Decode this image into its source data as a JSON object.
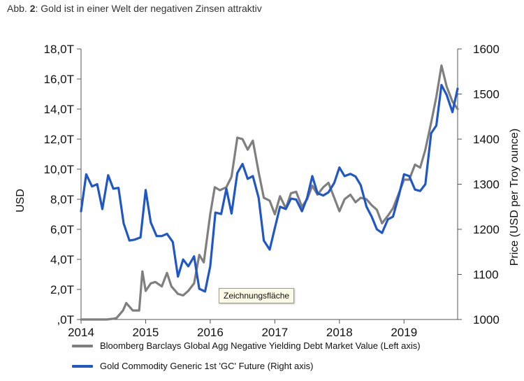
{
  "caption": {
    "prefix": "Abb. ",
    "number": "2",
    "text": ": Gold ist in einer Welt der negativen Zinsen attraktiv"
  },
  "tooltip": "Zeichnungsfläche",
  "chart_data": {
    "type": "line",
    "ylabel_left": "USD",
    "ylabel_right": "Price (USD per Troy ounce)",
    "left_axis": {
      "min": 0,
      "max": 18,
      "ticks": [
        ",0T",
        "2,0T",
        "4,0T",
        "6,0T",
        "8,0T",
        "10,0T",
        "12,0T",
        "14,0T",
        "16,0T",
        "18,0T"
      ]
    },
    "right_axis": {
      "min": 1000,
      "max": 1600,
      "ticks": [
        "1000",
        "1100",
        "1200",
        "1300",
        "1400",
        "1500",
        "1600"
      ]
    },
    "x_axis": {
      "min": 2014.0,
      "max": 2019.83,
      "ticks": [
        "2014",
        "2015",
        "2016",
        "2017",
        "2018",
        "2019"
      ]
    },
    "series": [
      {
        "name": "Bloomberg Barclays Global Agg Negative Yielding Debt Market Value (Left axis)",
        "axis": "left",
        "color": "#7f7f7f",
        "x": [
          2014.0,
          2014.1,
          2014.2,
          2014.3,
          2014.4,
          2014.5,
          2014.55,
          2014.65,
          2014.7,
          2014.8,
          2014.9,
          2014.95,
          2015.0,
          2015.08,
          2015.15,
          2015.25,
          2015.33,
          2015.4,
          2015.5,
          2015.58,
          2015.66,
          2015.75,
          2015.83,
          2015.9,
          2016.0,
          2016.07,
          2016.15,
          2016.25,
          2016.33,
          2016.42,
          2016.5,
          2016.58,
          2016.66,
          2016.75,
          2016.83,
          2016.92,
          2017.0,
          2017.08,
          2017.17,
          2017.25,
          2017.33,
          2017.42,
          2017.5,
          2017.58,
          2017.66,
          2017.75,
          2017.83,
          2017.92,
          2018.0,
          2018.08,
          2018.17,
          2018.25,
          2018.33,
          2018.42,
          2018.5,
          2018.58,
          2018.66,
          2018.75,
          2018.83,
          2018.92,
          2019.0,
          2019.08,
          2019.17,
          2019.25,
          2019.33,
          2019.42,
          2019.5,
          2019.58,
          2019.66,
          2019.75,
          2019.83
        ],
        "y": [
          0.0,
          0.0,
          0.0,
          0.0,
          0.0,
          0.05,
          0.1,
          0.6,
          1.1,
          0.6,
          0.6,
          3.2,
          1.9,
          2.4,
          2.5,
          2.2,
          3.1,
          2.2,
          1.7,
          1.6,
          1.9,
          2.4,
          4.3,
          3.8,
          7.0,
          8.8,
          8.6,
          8.8,
          9.5,
          12.1,
          12.0,
          11.3,
          11.9,
          9.8,
          8.1,
          7.9,
          7.0,
          8.2,
          7.4,
          8.4,
          8.5,
          7.5,
          8.0,
          8.9,
          8.3,
          8.8,
          9.1,
          8.1,
          7.2,
          8.0,
          8.3,
          7.8,
          8.1,
          8.0,
          7.6,
          7.3,
          6.4,
          6.9,
          7.4,
          8.4,
          9.3,
          9.3,
          10.3,
          10.1,
          11.3,
          13.1,
          14.8,
          16.9,
          15.5,
          14.5,
          14.0
        ],
        "values_note": "Trillion USD"
      },
      {
        "name": "Gold Commodity Generic 1st 'GC' Future (Right axis)",
        "axis": "right",
        "color": "#1f56c8",
        "x": [
          2014.0,
          2014.08,
          2014.17,
          2014.25,
          2014.33,
          2014.42,
          2014.5,
          2014.58,
          2014.66,
          2014.75,
          2014.83,
          2014.92,
          2015.0,
          2015.08,
          2015.17,
          2015.25,
          2015.33,
          2015.42,
          2015.5,
          2015.58,
          2015.66,
          2015.75,
          2015.83,
          2015.92,
          2016.0,
          2016.08,
          2016.17,
          2016.25,
          2016.33,
          2016.42,
          2016.5,
          2016.58,
          2016.66,
          2016.75,
          2016.83,
          2016.92,
          2017.0,
          2017.08,
          2017.17,
          2017.25,
          2017.33,
          2017.42,
          2017.5,
          2017.58,
          2017.66,
          2017.75,
          2017.83,
          2017.92,
          2018.0,
          2018.08,
          2018.17,
          2018.25,
          2018.33,
          2018.42,
          2018.5,
          2018.58,
          2018.66,
          2018.75,
          2018.83,
          2018.92,
          2019.0,
          2019.08,
          2019.17,
          2019.25,
          2019.33,
          2019.42,
          2019.5,
          2019.58,
          2019.66,
          2019.75,
          2019.83
        ],
        "y": [
          1240,
          1322,
          1295,
          1300,
          1245,
          1320,
          1290,
          1292,
          1213,
          1175,
          1177,
          1182,
          1287,
          1215,
          1185,
          1185,
          1190,
          1172,
          1095,
          1133,
          1118,
          1140,
          1068,
          1062,
          1118,
          1237,
          1234,
          1290,
          1235,
          1325,
          1345,
          1312,
          1318,
          1270,
          1175,
          1155,
          1203,
          1250,
          1245,
          1268,
          1266,
          1240,
          1270,
          1318,
          1280,
          1275,
          1282,
          1303,
          1337,
          1318,
          1323,
          1317,
          1298,
          1250,
          1228,
          1200,
          1192,
          1222,
          1228,
          1275,
          1322,
          1318,
          1288,
          1285,
          1300,
          1413,
          1430,
          1520,
          1498,
          1460,
          1512
        ]
      }
    ],
    "legend_position": "bottom",
    "grid": false
  }
}
